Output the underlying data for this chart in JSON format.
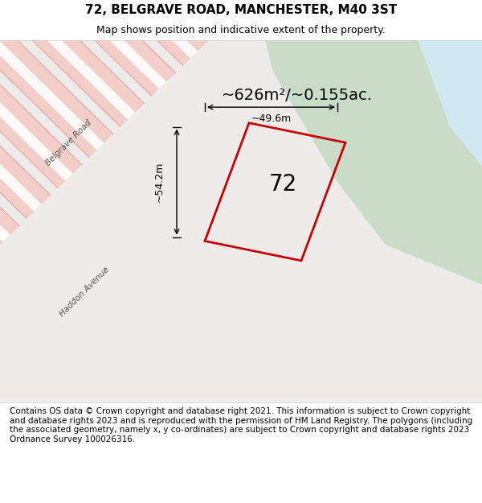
{
  "title": "72, BELGRAVE ROAD, MANCHESTER, M40 3ST",
  "subtitle": "Map shows position and indicative extent of the property.",
  "area_text": "~626m²/~0.155ac.",
  "label_72": "72",
  "dim_width": "~49.6m",
  "dim_height": "~54.2m",
  "footer": "Contains OS data © Crown copyright and database right 2021. This information is subject to Crown copyright and database rights 2023 and is reproduced with the permission of HM Land Registry. The polygons (including the associated geometry, namely x, y co-ordinates) are subject to Crown copyright and database rights 2023 Ordnance Survey 100026316.",
  "bg_color": "#f2f2f2",
  "map_bg": "#f0eeec",
  "road_color_light": "#f5c0b8",
  "road_color_dark": "#e8857a",
  "green_area": "#c8dcc8",
  "blue_area": "#d0e8f0",
  "plot_outline": "#cc0000",
  "plot_fill": "none",
  "title_fontsize": 11,
  "subtitle_fontsize": 9,
  "footer_fontsize": 7.5,
  "map_xlim": [
    0,
    1
  ],
  "map_ylim": [
    0,
    1
  ],
  "road_label_belgrave": "Belgrave Road",
  "road_label_haddon": "Haddon Avenue"
}
